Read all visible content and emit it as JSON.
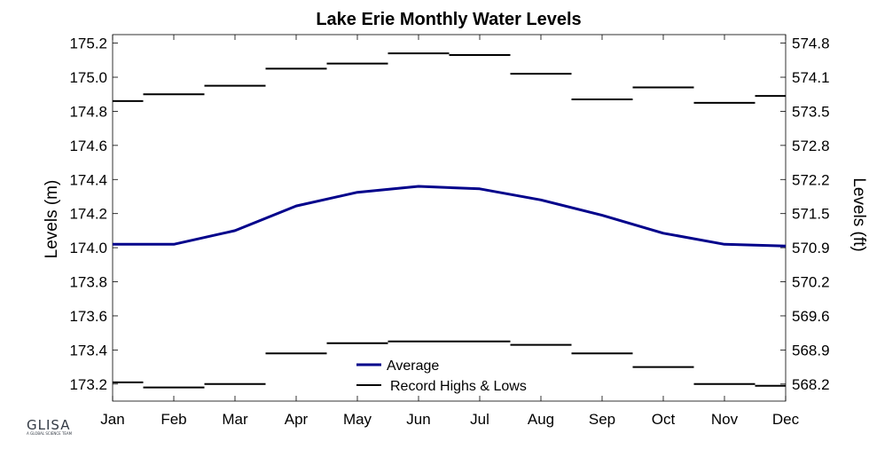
{
  "chart_data": {
    "type": "line",
    "title": "Lake Erie Monthly Water Levels",
    "ylabel_left": "Levels (m)",
    "ylabel_right": "Levels (ft)",
    "categories": [
      "Jan",
      "Feb",
      "Mar",
      "Apr",
      "May",
      "Jun",
      "Jul",
      "Aug",
      "Sep",
      "Oct",
      "Nov",
      "Dec"
    ],
    "ylim_left": [
      173.1,
      175.25
    ],
    "yticks_left": [
      "173.2",
      "173.4",
      "173.6",
      "173.8",
      "174.0",
      "174.2",
      "174.4",
      "174.6",
      "174.8",
      "175.0",
      "175.2"
    ],
    "yticks_right": [
      "568.2",
      "568.9",
      "569.6",
      "570.2",
      "570.9",
      "571.5",
      "572.2",
      "572.8",
      "573.5",
      "574.1",
      "574.8"
    ],
    "grid": false,
    "legend_position": "bottom-center",
    "series": [
      {
        "name": "Average",
        "color": "#00008b",
        "values": [
          174.02,
          174.02,
          174.1,
          174.245,
          174.325,
          174.36,
          174.345,
          174.28,
          174.19,
          174.085,
          174.02,
          174.01
        ]
      },
      {
        "name": "Record Highs & Lows",
        "color": "#000000",
        "highs": [
          174.86,
          174.9,
          174.95,
          175.05,
          175.08,
          175.14,
          175.13,
          175.02,
          174.87,
          174.94,
          174.85,
          174.89
        ],
        "lows": [
          173.21,
          173.18,
          173.2,
          173.38,
          173.44,
          173.45,
          173.45,
          173.43,
          173.38,
          173.3,
          173.2,
          173.19
        ]
      }
    ]
  },
  "logo": {
    "text": "GLISA",
    "subtext": "A GLOBAL SCIENCE TEAM"
  }
}
